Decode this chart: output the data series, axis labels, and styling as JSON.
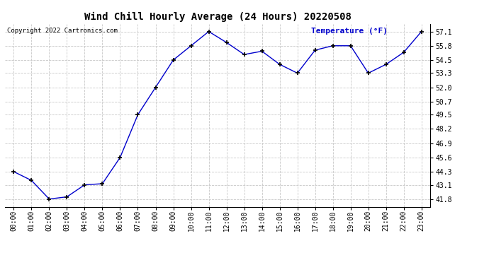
{
  "title": "Wind Chill Hourly Average (24 Hours) 20220508",
  "copyright_text": "Copyright 2022 Cartronics.com",
  "legend_text": "Temperature (°F)",
  "hours": [
    0,
    1,
    2,
    3,
    4,
    5,
    6,
    7,
    8,
    9,
    10,
    11,
    12,
    13,
    14,
    15,
    16,
    17,
    18,
    19,
    20,
    21,
    22,
    23
  ],
  "x_labels": [
    "00:00",
    "01:00",
    "02:00",
    "03:00",
    "04:00",
    "05:00",
    "06:00",
    "07:00",
    "08:00",
    "09:00",
    "10:00",
    "11:00",
    "12:00",
    "13:00",
    "14:00",
    "15:00",
    "16:00",
    "17:00",
    "18:00",
    "19:00",
    "20:00",
    "21:00",
    "22:00",
    "23:00"
  ],
  "values": [
    44.3,
    43.5,
    41.8,
    42.0,
    43.1,
    43.2,
    45.6,
    49.5,
    52.0,
    54.5,
    55.8,
    57.1,
    56.1,
    55.0,
    55.3,
    54.1,
    53.3,
    55.4,
    55.8,
    55.8,
    53.3,
    54.1,
    55.2,
    57.1
  ],
  "y_ticks": [
    41.8,
    43.1,
    44.3,
    45.6,
    46.9,
    48.2,
    49.5,
    50.7,
    52.0,
    53.3,
    54.5,
    55.8,
    57.1
  ],
  "ylim": [
    41.1,
    57.8
  ],
  "line_color": "#0000cc",
  "marker": "+",
  "marker_color": "#000000",
  "bg_color": "#ffffff",
  "grid_color": "#c8c8c8",
  "title_fontsize": 10,
  "copyright_fontsize": 6.5,
  "legend_fontsize": 8,
  "tick_fontsize": 7,
  "figure_width": 6.9,
  "figure_height": 3.75,
  "figure_dpi": 100
}
